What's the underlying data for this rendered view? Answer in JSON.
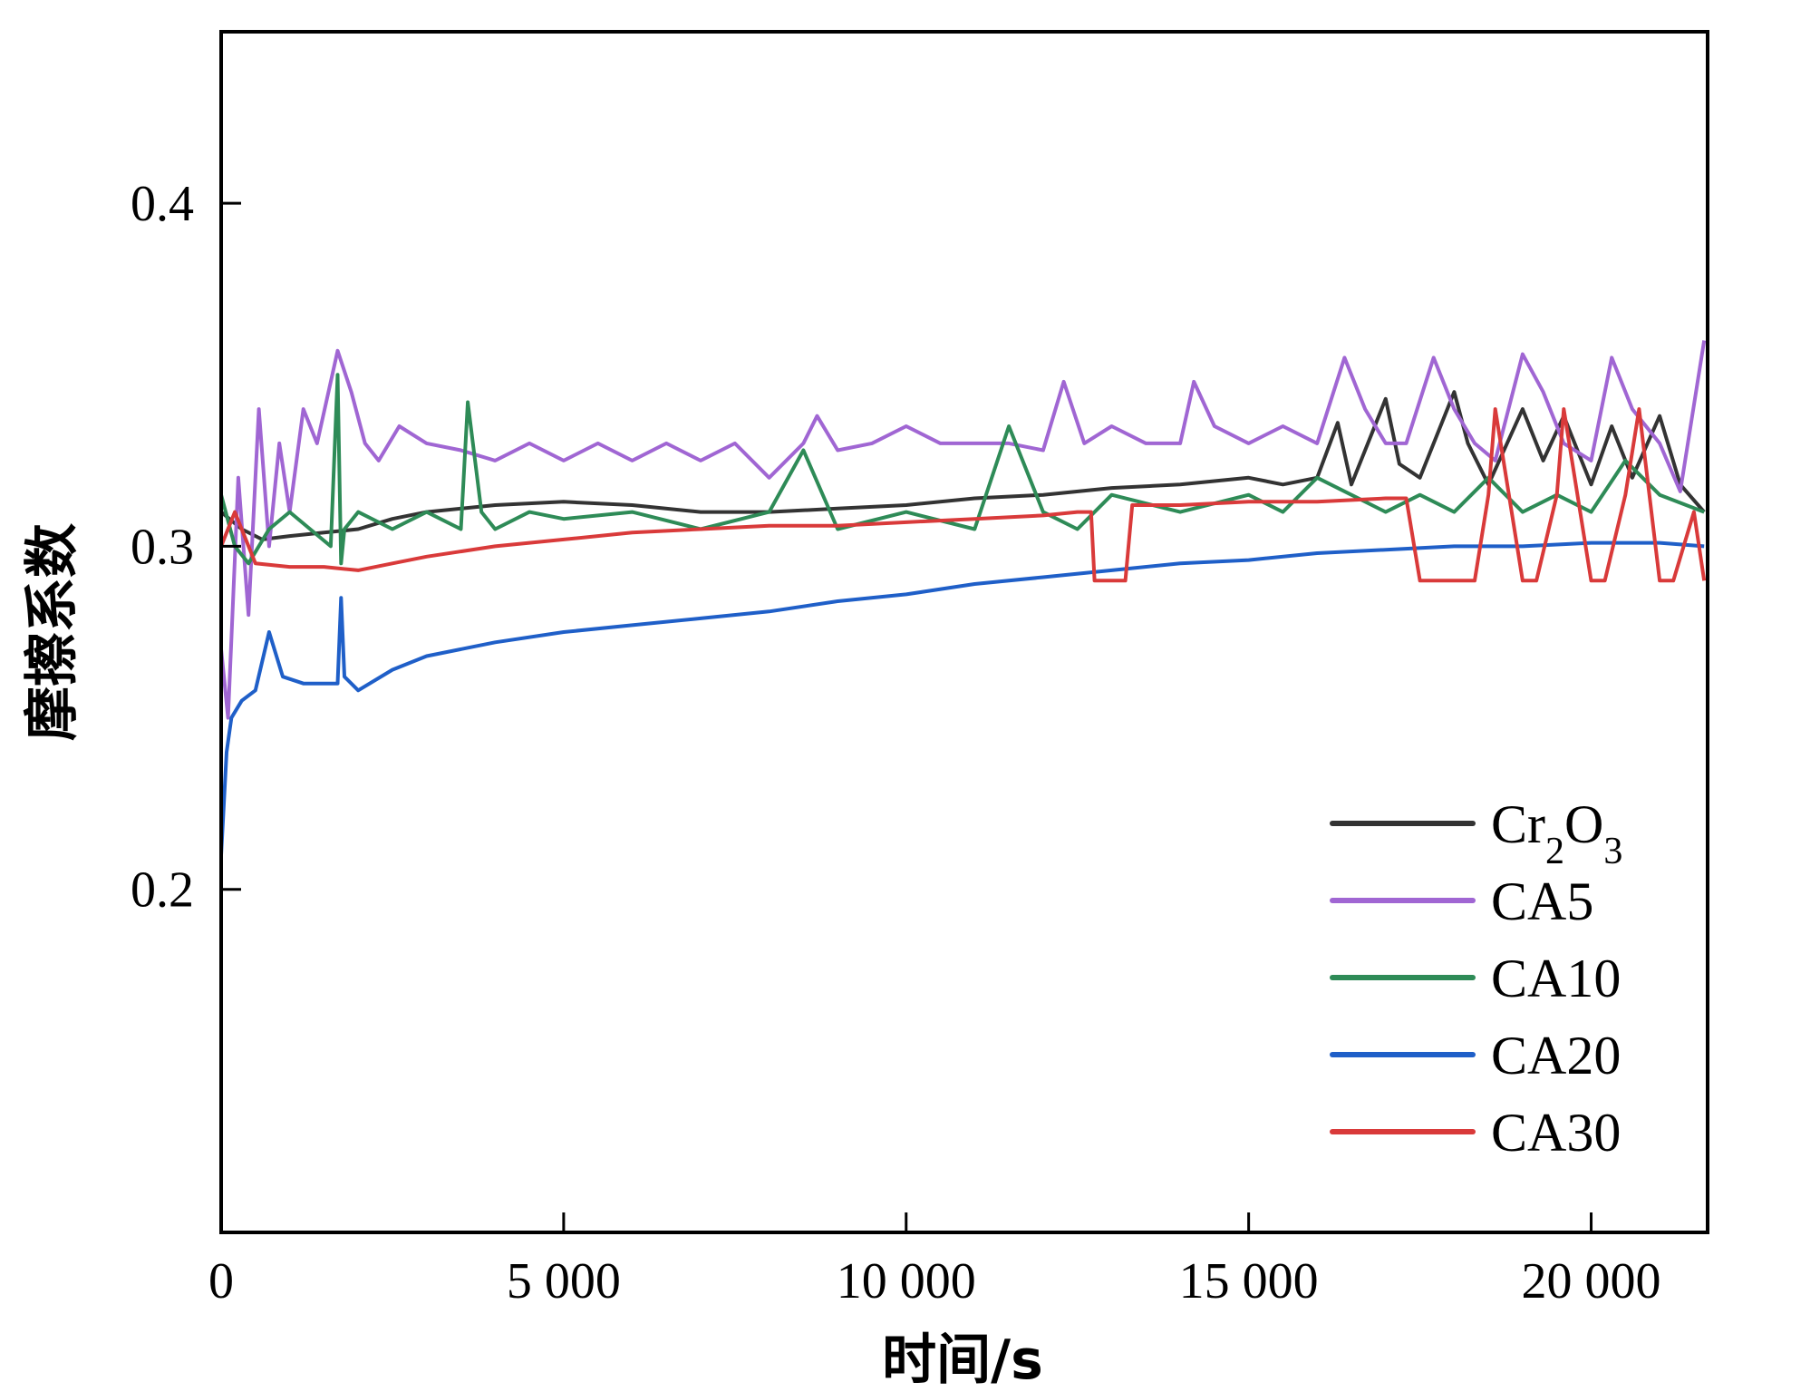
{
  "chart_data": {
    "type": "line",
    "xlabel": "时间/s",
    "ylabel": "摩擦系数",
    "xlim": [
      0,
      21700
    ],
    "ylim": [
      0.1,
      0.45
    ],
    "xticks": [
      0,
      5000,
      10000,
      15000,
      20000
    ],
    "xtick_labels": [
      "0",
      "5 000",
      "10 000",
      "15 000",
      "20 000"
    ],
    "yticks": [
      0.2,
      0.3,
      0.4
    ],
    "ytick_labels": [
      "0.2",
      "0.3",
      "0.4"
    ],
    "grid": false,
    "legend_position": "bottom-right",
    "series": [
      {
        "name": "Cr2O3",
        "legend": {
          "main": "Cr",
          "sub1": "2",
          "mid": "O",
          "sub2": "3"
        },
        "color": "#333333",
        "x": [
          0,
          300,
          600,
          1000,
          1500,
          2000,
          2500,
          3000,
          4000,
          5000,
          6000,
          7000,
          8000,
          9000,
          10000,
          11000,
          12000,
          13000,
          14000,
          15000,
          15500,
          16000,
          16300,
          16500,
          16800,
          17000,
          17200,
          17500,
          18000,
          18200,
          18500,
          19000,
          19300,
          19600,
          20000,
          20300,
          20600,
          21000,
          21300,
          21650
        ],
        "y": [
          0.31,
          0.305,
          0.302,
          0.303,
          0.304,
          0.305,
          0.308,
          0.31,
          0.312,
          0.313,
          0.312,
          0.31,
          0.31,
          0.311,
          0.312,
          0.314,
          0.315,
          0.317,
          0.318,
          0.32,
          0.318,
          0.32,
          0.336,
          0.318,
          0.333,
          0.343,
          0.324,
          0.32,
          0.345,
          0.33,
          0.318,
          0.34,
          0.325,
          0.338,
          0.318,
          0.335,
          0.32,
          0.338,
          0.318,
          0.31
        ]
      },
      {
        "name": "CA5",
        "color": "#a066d3",
        "x": [
          0,
          100,
          250,
          400,
          550,
          700,
          850,
          1000,
          1200,
          1400,
          1700,
          1900,
          2100,
          2300,
          2600,
          3000,
          3500,
          4000,
          4500,
          5000,
          5500,
          6000,
          6500,
          7000,
          7500,
          8000,
          8500,
          8700,
          9000,
          9500,
          10000,
          10500,
          11000,
          11500,
          12000,
          12300,
          12600,
          13000,
          13500,
          14000,
          14200,
          14500,
          15000,
          15500,
          16000,
          16400,
          16700,
          17000,
          17300,
          17700,
          18000,
          18300,
          18600,
          19000,
          19300,
          19600,
          20000,
          20300,
          20600,
          21000,
          21300,
          21650
        ],
        "y": [
          0.27,
          0.25,
          0.32,
          0.28,
          0.34,
          0.3,
          0.33,
          0.31,
          0.34,
          0.33,
          0.357,
          0.345,
          0.33,
          0.325,
          0.335,
          0.33,
          0.328,
          0.325,
          0.33,
          0.325,
          0.33,
          0.325,
          0.33,
          0.325,
          0.33,
          0.32,
          0.33,
          0.338,
          0.328,
          0.33,
          0.335,
          0.33,
          0.33,
          0.33,
          0.328,
          0.348,
          0.33,
          0.335,
          0.33,
          0.33,
          0.348,
          0.335,
          0.33,
          0.335,
          0.33,
          0.355,
          0.34,
          0.33,
          0.33,
          0.355,
          0.34,
          0.33,
          0.325,
          0.356,
          0.345,
          0.33,
          0.325,
          0.355,
          0.34,
          0.33,
          0.316,
          0.36
        ]
      },
      {
        "name": "CA10",
        "color": "#2e8b57",
        "x": [
          0,
          200,
          400,
          700,
          1000,
          1300,
          1600,
          1700,
          1750,
          1800,
          2000,
          2500,
          3000,
          3500,
          3600,
          3800,
          4000,
          4500,
          5000,
          6000,
          7000,
          8000,
          8500,
          9000,
          10000,
          11000,
          11500,
          12000,
          12500,
          13000,
          14000,
          15000,
          15500,
          16000,
          16500,
          17000,
          17500,
          18000,
          18500,
          19000,
          19500,
          20000,
          20500,
          21000,
          21650
        ],
        "y": [
          0.315,
          0.3,
          0.295,
          0.305,
          0.31,
          0.305,
          0.3,
          0.35,
          0.295,
          0.305,
          0.31,
          0.305,
          0.31,
          0.305,
          0.342,
          0.31,
          0.305,
          0.31,
          0.308,
          0.31,
          0.305,
          0.31,
          0.328,
          0.305,
          0.31,
          0.305,
          0.335,
          0.31,
          0.305,
          0.315,
          0.31,
          0.315,
          0.31,
          0.32,
          0.315,
          0.31,
          0.315,
          0.31,
          0.32,
          0.31,
          0.315,
          0.31,
          0.325,
          0.315,
          0.31
        ]
      },
      {
        "name": "CA20",
        "color": "#1f5fc8",
        "x": [
          0,
          80,
          150,
          300,
          500,
          700,
          900,
          1200,
          1700,
          1750,
          1800,
          2000,
          2500,
          3000,
          4000,
          5000,
          6000,
          7000,
          8000,
          9000,
          10000,
          11000,
          12000,
          13000,
          14000,
          15000,
          16000,
          17000,
          18000,
          19000,
          20000,
          21000,
          21650
        ],
        "y": [
          0.21,
          0.24,
          0.25,
          0.255,
          0.258,
          0.275,
          0.262,
          0.26,
          0.26,
          0.285,
          0.262,
          0.258,
          0.264,
          0.268,
          0.272,
          0.275,
          0.277,
          0.279,
          0.281,
          0.284,
          0.286,
          0.289,
          0.291,
          0.293,
          0.295,
          0.296,
          0.298,
          0.299,
          0.3,
          0.3,
          0.301,
          0.301,
          0.3
        ]
      },
      {
        "name": "CA30",
        "color": "#d93a3a",
        "x": [
          0,
          200,
          500,
          1000,
          1500,
          2000,
          2500,
          3000,
          4000,
          5000,
          6000,
          7000,
          8000,
          9000,
          10000,
          11000,
          12000,
          12500,
          12700,
          12750,
          13000,
          13200,
          13300,
          14000,
          15000,
          16000,
          17000,
          17300,
          17500,
          18000,
          18300,
          18500,
          18600,
          19000,
          19200,
          19500,
          19600,
          20000,
          20200,
          20500,
          20700,
          21000,
          21200,
          21500,
          21650
        ],
        "y": [
          0.3,
          0.31,
          0.295,
          0.294,
          0.294,
          0.293,
          0.295,
          0.297,
          0.3,
          0.302,
          0.304,
          0.305,
          0.306,
          0.306,
          0.307,
          0.308,
          0.309,
          0.31,
          0.31,
          0.29,
          0.29,
          0.29,
          0.312,
          0.312,
          0.313,
          0.313,
          0.314,
          0.314,
          0.29,
          0.29,
          0.29,
          0.315,
          0.34,
          0.29,
          0.29,
          0.315,
          0.34,
          0.29,
          0.29,
          0.315,
          0.34,
          0.29,
          0.29,
          0.31,
          0.29
        ]
      }
    ]
  }
}
